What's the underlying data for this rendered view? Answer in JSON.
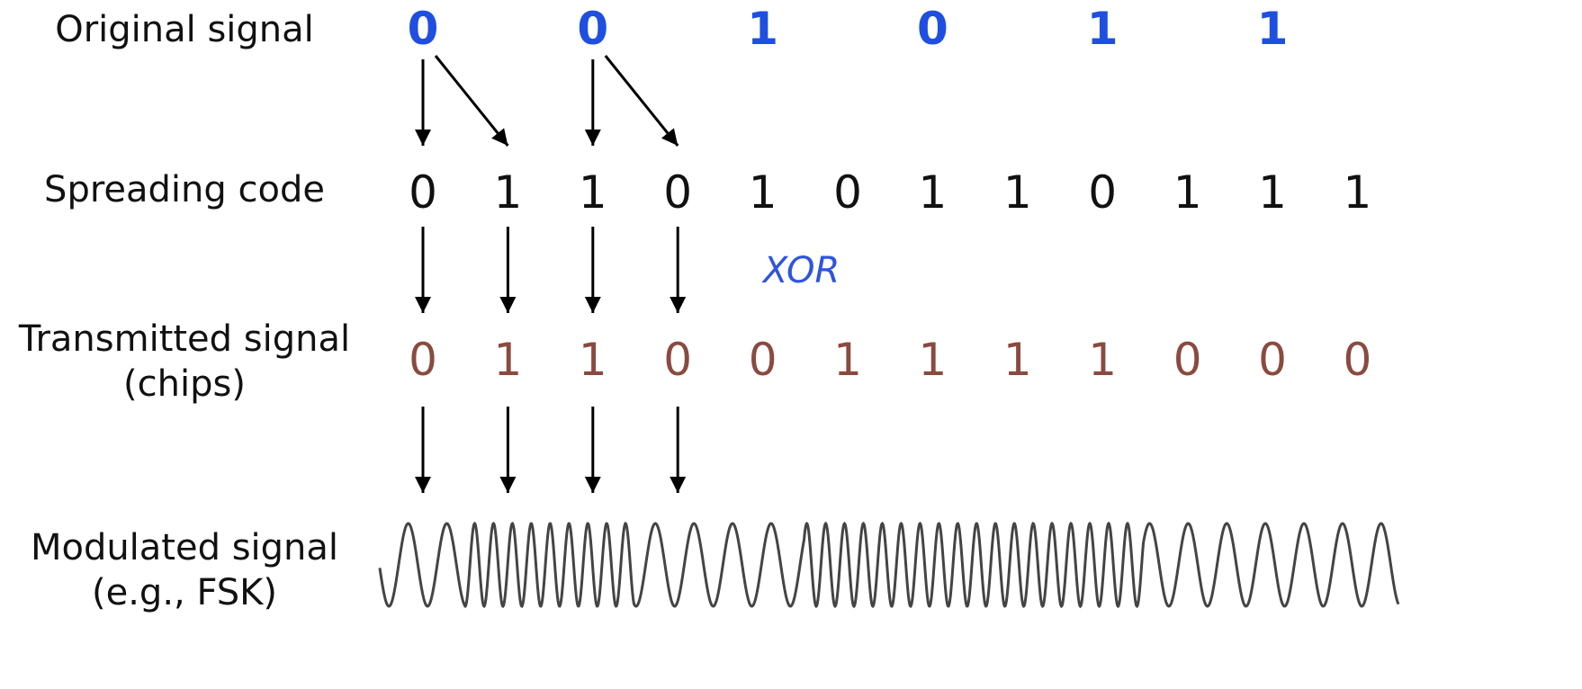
{
  "labels": {
    "original_signal": "Original signal",
    "spreading_code": "Spreading code",
    "transmitted_line1": "Transmitted signal",
    "transmitted_line2": "(chips)",
    "modulated_line1": "Modulated signal",
    "modulated_line2": "(e.g., FSK)",
    "operation": "XOR"
  },
  "original_bits": [
    "0",
    "0",
    "1",
    "0",
    "1",
    "1"
  ],
  "spreading_code": [
    "0",
    "1",
    "1",
    "0",
    "1",
    "0",
    "1",
    "1",
    "0",
    "1",
    "1",
    "1"
  ],
  "transmitted_chips": [
    "0",
    "1",
    "1",
    "0",
    "0",
    "1",
    "1",
    "1",
    "1",
    "0",
    "0",
    "0"
  ],
  "colors": {
    "original": "#1f4fe0",
    "spreading": "#111111",
    "chips": "#8a4a40",
    "operation": "#2f54e0",
    "wave": "#444444",
    "arrows": "#000000"
  }
}
